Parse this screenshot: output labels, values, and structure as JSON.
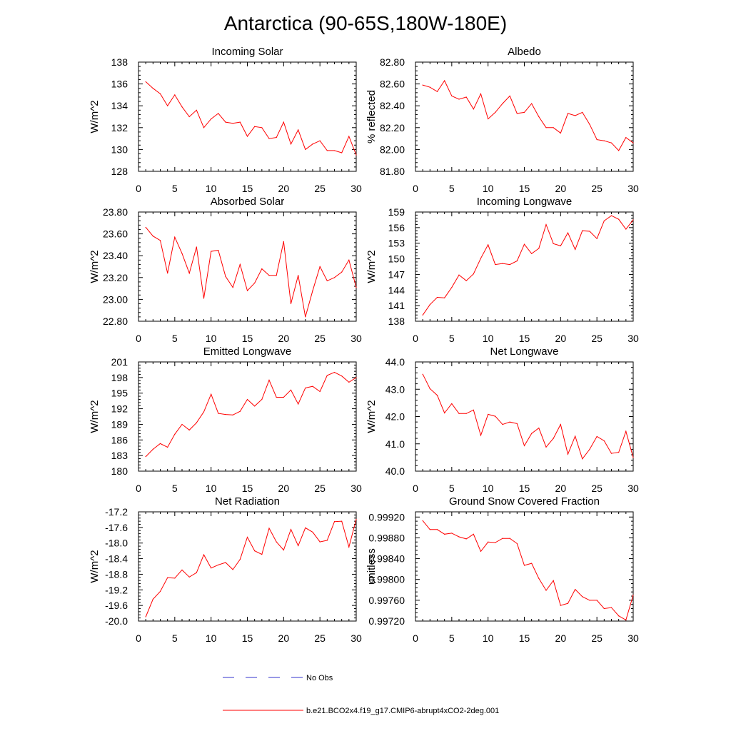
{
  "title": "Antarctica (90-65S,180W-180E)",
  "colors": {
    "model": "#ff0000",
    "obs": "#3333cc",
    "axis": "#000000"
  },
  "legend": {
    "obs_label": "No Obs",
    "model_label": "b.e21.BCO2x4.f19_g17.CMIP6-abrupt4xCO2-2deg.001"
  },
  "chart_data": [
    {
      "type": "line",
      "title": "Incoming Solar",
      "ylabel": "W/m^2",
      "xlim": [
        0,
        30
      ],
      "ylim": [
        128,
        138
      ],
      "xticks": [
        0,
        5,
        10,
        15,
        20,
        25,
        30
      ],
      "yticks": [
        128,
        130,
        132,
        134,
        136,
        138
      ],
      "ytick_labels": [
        "128",
        "130",
        "132",
        "134",
        "136",
        "138"
      ],
      "x": [
        1,
        2,
        3,
        4,
        5,
        6,
        7,
        8,
        9,
        10,
        11,
        12,
        13,
        14,
        15,
        16,
        17,
        18,
        19,
        20,
        21,
        22,
        23,
        24,
        25,
        26,
        27,
        28,
        29,
        30
      ],
      "values": [
        136.2,
        135.6,
        135.1,
        134.0,
        135.0,
        133.9,
        133.0,
        133.6,
        132.0,
        132.8,
        133.3,
        132.5,
        132.4,
        132.5,
        131.2,
        132.1,
        132.0,
        131.0,
        131.1,
        132.5,
        130.5,
        131.8,
        130.0,
        130.5,
        130.8,
        129.9,
        129.9,
        129.7,
        131.2,
        129.5
      ],
      "series_name": "b.e21.BCO2x4.f19_g17.CMIP6-abrupt4xCO2-2deg.001"
    },
    {
      "type": "line",
      "title": "Albedo",
      "ylabel": "% reflected",
      "xlim": [
        0,
        30
      ],
      "ylim": [
        81.8,
        82.8
      ],
      "xticks": [
        0,
        5,
        10,
        15,
        20,
        25,
        30
      ],
      "yticks": [
        81.8,
        82.0,
        82.2,
        82.4,
        82.6,
        82.8
      ],
      "ytick_labels": [
        "81.80",
        "82.00",
        "82.20",
        "82.40",
        "82.60",
        "82.80"
      ],
      "x": [
        1,
        2,
        3,
        4,
        5,
        6,
        7,
        8,
        9,
        10,
        11,
        12,
        13,
        14,
        15,
        16,
        17,
        18,
        19,
        20,
        21,
        22,
        23,
        24,
        25,
        26,
        27,
        28,
        29,
        30
      ],
      "values": [
        82.59,
        82.57,
        82.53,
        82.63,
        82.49,
        82.46,
        82.48,
        82.37,
        82.51,
        82.28,
        82.34,
        82.42,
        82.49,
        82.33,
        82.34,
        82.42,
        82.3,
        82.2,
        82.2,
        82.15,
        82.33,
        82.31,
        82.34,
        82.23,
        82.09,
        82.08,
        82.06,
        81.99,
        82.11,
        82.06
      ],
      "series_name": "b.e21.BCO2x4.f19_g17.CMIP6-abrupt4xCO2-2deg.001"
    },
    {
      "type": "line",
      "title": "Absorbed Solar",
      "ylabel": "W/m^2",
      "xlim": [
        0,
        30
      ],
      "ylim": [
        22.8,
        23.8
      ],
      "xticks": [
        0,
        5,
        10,
        15,
        20,
        25,
        30
      ],
      "yticks": [
        22.8,
        23.0,
        23.2,
        23.4,
        23.6,
        23.8
      ],
      "ytick_labels": [
        "22.80",
        "23.00",
        "23.20",
        "23.40",
        "23.60",
        "23.80"
      ],
      "x": [
        1,
        2,
        3,
        4,
        5,
        6,
        7,
        8,
        9,
        10,
        11,
        12,
        13,
        14,
        15,
        16,
        17,
        18,
        19,
        20,
        21,
        22,
        23,
        24,
        25,
        26,
        27,
        28,
        29,
        30
      ],
      "values": [
        23.66,
        23.58,
        23.54,
        23.24,
        23.57,
        23.42,
        23.24,
        23.48,
        23.01,
        23.44,
        23.45,
        23.21,
        23.11,
        23.32,
        23.08,
        23.15,
        23.28,
        23.22,
        23.22,
        23.53,
        22.96,
        23.22,
        22.84,
        23.08,
        23.3,
        23.17,
        23.2,
        23.25,
        23.36,
        23.11
      ],
      "series_name": "b.e21.BCO2x4.f19_g17.CMIP6-abrupt4xCO2-2deg.001"
    },
    {
      "type": "line",
      "title": "Incoming Longwave",
      "ylabel": "W/m^2",
      "xlim": [
        0,
        30
      ],
      "ylim": [
        138,
        159
      ],
      "xticks": [
        0,
        5,
        10,
        15,
        20,
        25,
        30
      ],
      "yticks": [
        138,
        141,
        144,
        147,
        150,
        153,
        156,
        159
      ],
      "ytick_labels": [
        "138",
        "141",
        "144",
        "147",
        "150",
        "153",
        "156",
        "159"
      ],
      "x": [
        1,
        2,
        3,
        4,
        5,
        6,
        7,
        8,
        9,
        10,
        11,
        12,
        13,
        14,
        15,
        16,
        17,
        18,
        19,
        20,
        21,
        22,
        23,
        24,
        25,
        26,
        27,
        28,
        29,
        30
      ],
      "values": [
        139.2,
        141.2,
        142.6,
        142.5,
        144.5,
        146.9,
        145.8,
        147.1,
        150.1,
        152.7,
        148.9,
        149.1,
        148.9,
        149.6,
        152.8,
        151.0,
        152.0,
        156.6,
        152.9,
        152.5,
        155.0,
        151.8,
        155.4,
        155.3,
        153.9,
        157.3,
        158.3,
        157.6,
        155.7,
        157.5
      ],
      "series_name": "b.e21.BCO2x4.f19_g17.CMIP6-abrupt4xCO2-2deg.001"
    },
    {
      "type": "line",
      "title": "Emitted Longwave",
      "ylabel": "W/m^2",
      "xlim": [
        0,
        30
      ],
      "ylim": [
        180,
        201
      ],
      "xticks": [
        0,
        5,
        10,
        15,
        20,
        25,
        30
      ],
      "yticks": [
        180,
        183,
        186,
        189,
        192,
        195,
        198,
        201
      ],
      "ytick_labels": [
        "180",
        "183",
        "186",
        "189",
        "192",
        "195",
        "198",
        "201"
      ],
      "x": [
        1,
        2,
        3,
        4,
        5,
        6,
        7,
        8,
        9,
        10,
        11,
        12,
        13,
        14,
        15,
        16,
        17,
        18,
        19,
        20,
        21,
        22,
        23,
        24,
        25,
        26,
        27,
        28,
        29,
        30
      ],
      "values": [
        182.8,
        184.2,
        185.3,
        184.6,
        187.1,
        189.0,
        187.9,
        189.3,
        191.4,
        194.8,
        191.1,
        190.9,
        190.8,
        191.5,
        193.8,
        192.5,
        193.8,
        197.5,
        194.2,
        194.2,
        195.6,
        192.9,
        196.0,
        196.3,
        195.3,
        198.4,
        199.0,
        198.3,
        197.1,
        198.0
      ],
      "series_name": "b.e21.BCO2x4.f19_g17.CMIP6-abrupt4xCO2-2deg.001"
    },
    {
      "type": "line",
      "title": "Net Longwave",
      "ylabel": "W/m^2",
      "xlim": [
        0,
        30
      ],
      "ylim": [
        40.0,
        44.0
      ],
      "xticks": [
        0,
        5,
        10,
        15,
        20,
        25,
        30
      ],
      "yticks": [
        40.0,
        41.0,
        42.0,
        43.0,
        44.0
      ],
      "ytick_labels": [
        "40.0",
        "41.0",
        "42.0",
        "43.0",
        "44.0"
      ],
      "x": [
        1,
        2,
        3,
        4,
        5,
        6,
        7,
        8,
        9,
        10,
        11,
        12,
        13,
        14,
        15,
        16,
        17,
        18,
        19,
        20,
        21,
        22,
        23,
        24,
        25,
        26,
        27,
        28,
        29,
        30
      ],
      "values": [
        43.55,
        43.02,
        42.78,
        42.13,
        42.47,
        42.11,
        42.11,
        42.24,
        41.31,
        42.08,
        42.01,
        41.71,
        41.8,
        41.74,
        40.93,
        41.38,
        41.58,
        40.88,
        41.2,
        41.71,
        40.62,
        41.28,
        40.45,
        40.8,
        41.27,
        41.11,
        40.65,
        40.69,
        41.46,
        40.5
      ],
      "series_name": "b.e21.BCO2x4.f19_g17.CMIP6-abrupt4xCO2-2deg.001"
    },
    {
      "type": "line",
      "title": "Net Radiation",
      "ylabel": "W/m^2",
      "xlim": [
        0,
        30
      ],
      "ylim": [
        -20.0,
        -17.2
      ],
      "xticks": [
        0,
        5,
        10,
        15,
        20,
        25,
        30
      ],
      "yticks": [
        -20.0,
        -19.6,
        -19.2,
        -18.8,
        -18.4,
        -18.0,
        -17.6,
        -17.2
      ],
      "ytick_labels": [
        "-20.0",
        "-19.6",
        "-19.2",
        "-18.8",
        "-18.4",
        "-18.0",
        "-17.6",
        "-17.2"
      ],
      "x": [
        1,
        2,
        3,
        4,
        5,
        6,
        7,
        8,
        9,
        10,
        11,
        12,
        13,
        14,
        15,
        16,
        17,
        18,
        19,
        20,
        21,
        22,
        23,
        24,
        25,
        26,
        27,
        28,
        29,
        30
      ],
      "values": [
        -19.89,
        -19.44,
        -19.24,
        -18.89,
        -18.9,
        -18.69,
        -18.87,
        -18.76,
        -18.3,
        -18.64,
        -18.56,
        -18.5,
        -18.68,
        -18.42,
        -17.85,
        -18.2,
        -18.29,
        -17.62,
        -17.97,
        -18.18,
        -17.65,
        -18.07,
        -17.61,
        -17.72,
        -17.97,
        -17.93,
        -17.45,
        -17.44,
        -18.1,
        -17.39
      ],
      "series_name": "b.e21.BCO2x4.f19_g17.CMIP6-abrupt4xCO2-2deg.001"
    },
    {
      "type": "line",
      "title": "Ground Snow Covered Fraction",
      "ylabel": "unitless",
      "xlim": [
        0,
        30
      ],
      "ylim": [
        0.9972,
        0.9993
      ],
      "xticks": [
        0,
        5,
        10,
        15,
        20,
        25,
        30
      ],
      "yticks": [
        0.9972,
        0.9976,
        0.998,
        0.9984,
        0.9988,
        0.9992
      ],
      "ytick_labels": [
        "0.99720",
        "0.99760",
        "0.99800",
        "0.99840",
        "0.99880",
        "0.99920"
      ],
      "x": [
        1,
        2,
        3,
        4,
        5,
        6,
        7,
        8,
        9,
        10,
        11,
        12,
        13,
        14,
        15,
        16,
        17,
        18,
        19,
        20,
        21,
        22,
        23,
        24,
        25,
        26,
        27,
        28,
        29,
        30
      ],
      "values": [
        0.99913,
        0.99896,
        0.99896,
        0.99887,
        0.99889,
        0.99882,
        0.99878,
        0.99887,
        0.99854,
        0.99872,
        0.99871,
        0.99879,
        0.99879,
        0.99869,
        0.99827,
        0.99831,
        0.99802,
        0.99779,
        0.99798,
        0.9975,
        0.99754,
        0.99781,
        0.99767,
        0.9976,
        0.9976,
        0.99744,
        0.99746,
        0.9973,
        0.99722,
        0.9977
      ],
      "series_name": "b.e21.BCO2x4.f19_g17.CMIP6-abrupt4xCO2-2deg.001"
    }
  ]
}
